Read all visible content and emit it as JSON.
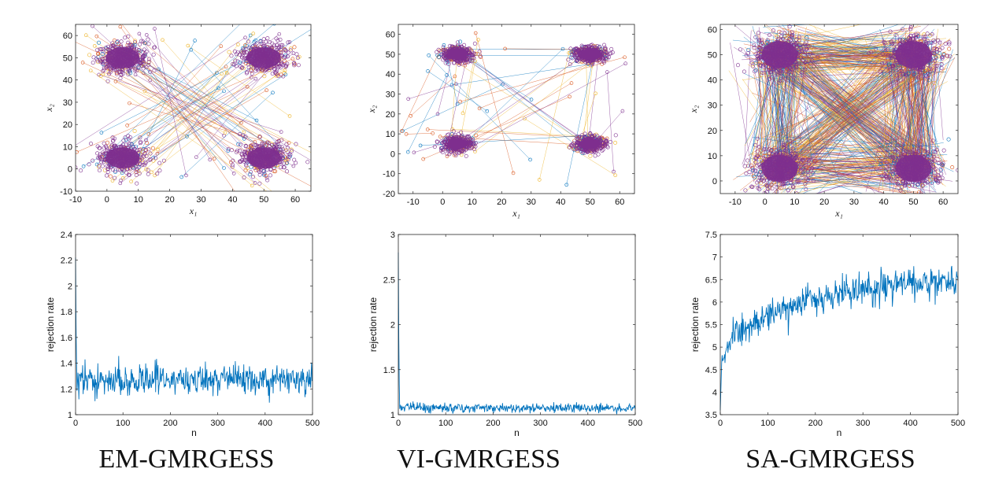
{
  "figure": {
    "captions": [
      "EM-GMRGESS",
      "VI-GMRGESS",
      "SA-GMRGESS"
    ]
  },
  "palette": {
    "blue": "#0072BD",
    "orange": "#EDB120",
    "red": "#D95319",
    "purple": "#7E2F8E",
    "axis": "#262626"
  },
  "chart_data": [
    {
      "id": "em-scatter",
      "type": "scatter",
      "title": "",
      "xlabel": "x1",
      "ylabel": "x2",
      "xlim": [
        -10,
        65
      ],
      "ylim": [
        -10,
        65
      ],
      "xticks": [
        -10,
        0,
        10,
        20,
        30,
        40,
        50,
        60
      ],
      "yticks": [
        -10,
        0,
        10,
        20,
        30,
        40,
        50,
        60
      ],
      "clusters": [
        {
          "center": [
            5,
            50
          ],
          "spread": [
            4,
            3.5
          ]
        },
        {
          "center": [
            50,
            50
          ],
          "spread": [
            4,
            3.5
          ]
        },
        {
          "center": [
            5,
            5
          ],
          "spread": [
            4,
            3.5
          ]
        },
        {
          "center": [
            50,
            5
          ],
          "spread": [
            4,
            3.5
          ]
        }
      ],
      "series": [
        "blue",
        "orange",
        "red",
        "purple"
      ],
      "transition_pattern": "cross"
    },
    {
      "id": "vi-scatter",
      "type": "scatter",
      "title": "",
      "xlabel": "x1",
      "ylabel": "x2",
      "xlim": [
        -15,
        65
      ],
      "ylim": [
        -20,
        65
      ],
      "xticks": [
        -10,
        0,
        10,
        20,
        30,
        40,
        50,
        60
      ],
      "yticks": [
        -20,
        -10,
        0,
        10,
        20,
        30,
        40,
        50,
        60
      ],
      "clusters": [
        {
          "center": [
            5,
            50
          ],
          "spread": [
            2.5,
            2
          ]
        },
        {
          "center": [
            50,
            50
          ],
          "spread": [
            3,
            2
          ]
        },
        {
          "center": [
            5,
            5
          ],
          "spread": [
            2.5,
            2
          ]
        },
        {
          "center": [
            50,
            5
          ],
          "spread": [
            2.5,
            2
          ]
        }
      ],
      "series": [
        "blue",
        "orange",
        "red",
        "purple"
      ],
      "transition_pattern": "random"
    },
    {
      "id": "sa-scatter",
      "type": "scatter",
      "title": "",
      "xlabel": "x1",
      "ylabel": "x2",
      "xlim": [
        -15,
        65
      ],
      "ylim": [
        -5,
        62
      ],
      "xticks": [
        -10,
        0,
        10,
        20,
        30,
        40,
        50,
        60
      ],
      "yticks": [
        0,
        10,
        20,
        30,
        40,
        50,
        60
      ],
      "clusters": [
        {
          "center": [
            5,
            50
          ],
          "spread": [
            4.5,
            4
          ]
        },
        {
          "center": [
            50,
            50
          ],
          "spread": [
            4.5,
            4
          ]
        },
        {
          "center": [
            5,
            5
          ],
          "spread": [
            4.5,
            4
          ]
        },
        {
          "center": [
            50,
            5
          ],
          "spread": [
            4.5,
            4
          ]
        }
      ],
      "series": [
        "blue",
        "orange",
        "red",
        "purple"
      ],
      "transition_pattern": "dense"
    },
    {
      "id": "em-rejection",
      "type": "line",
      "title": "",
      "xlabel": "n",
      "ylabel": "rejection rate",
      "xlim": [
        0,
        500
      ],
      "ylim": [
        1,
        2.4
      ],
      "xticks": [
        0,
        100,
        200,
        300,
        400,
        500
      ],
      "yticks": [
        1,
        1.2,
        1.4,
        1.6,
        1.8,
        2,
        2.2,
        2.4
      ],
      "series": [
        {
          "name": "rejection rate",
          "start": 2.22,
          "baseline_start": 1.27,
          "baseline_end": 1.27,
          "noise": 0.06
        }
      ]
    },
    {
      "id": "vi-rejection",
      "type": "line",
      "title": "",
      "xlabel": "n",
      "ylabel": "rejection rate",
      "xlim": [
        0,
        500
      ],
      "ylim": [
        1,
        3
      ],
      "xticks": [
        0,
        100,
        200,
        300,
        400,
        500
      ],
      "yticks": [
        1,
        1.5,
        2,
        2.5,
        3
      ],
      "series": [
        {
          "name": "rejection rate",
          "start": 2.8,
          "baseline_start": 1.08,
          "baseline_end": 1.07,
          "noise": 0.025
        }
      ]
    },
    {
      "id": "sa-rejection",
      "type": "line",
      "title": "",
      "xlabel": "n",
      "ylabel": "rejection rate",
      "xlim": [
        0,
        500
      ],
      "ylim": [
        3.5,
        7.5
      ],
      "xticks": [
        0,
        100,
        200,
        300,
        400,
        500
      ],
      "yticks": [
        3.5,
        4,
        4.5,
        5,
        5.5,
        6,
        6.5,
        7,
        7.5
      ],
      "series": [
        {
          "name": "rejection rate",
          "start": 3.6,
          "baseline_start": 5.0,
          "baseline_end": 6.5,
          "noise": 0.18
        }
      ]
    }
  ]
}
